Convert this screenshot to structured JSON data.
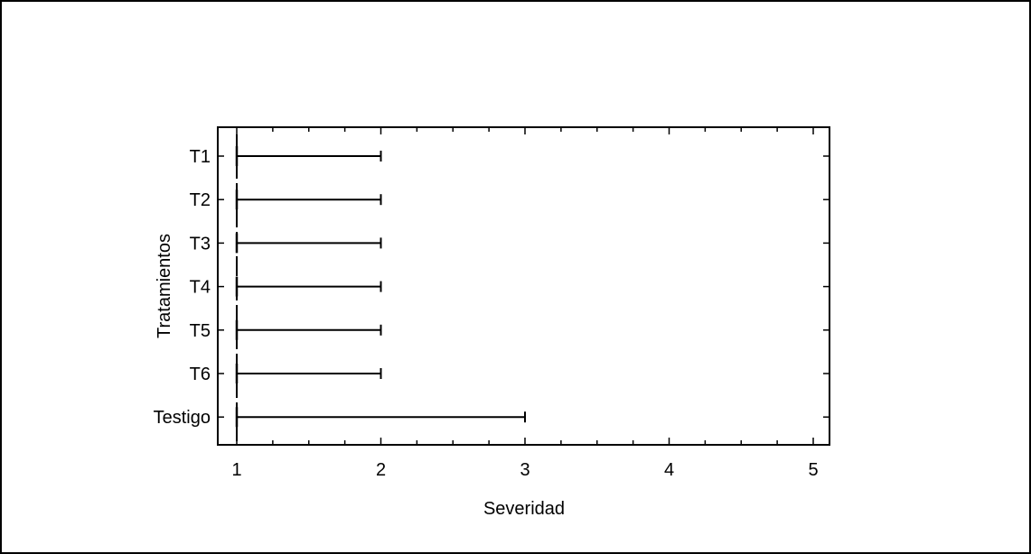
{
  "chart_data": {
    "type": "box",
    "title": "",
    "xlabel": "Severidad",
    "ylabel": "Tratamientos",
    "xlim": [
      0.9,
      5.1
    ],
    "xticks": [
      1,
      2,
      3,
      4,
      5
    ],
    "xtick_labels": [
      "1",
      "2",
      "3",
      "4",
      "5"
    ],
    "categories": [
      "T1",
      "T2",
      "T3",
      "T4",
      "T5",
      "T6",
      "Testigo"
    ],
    "series": [
      {
        "category": "T1",
        "min": 1,
        "median": 1,
        "max": 2
      },
      {
        "category": "T2",
        "min": 1,
        "median": 1,
        "max": 2
      },
      {
        "category": "T3",
        "min": 1,
        "median": 1,
        "max": 2
      },
      {
        "category": "T4",
        "min": 1,
        "median": 1,
        "max": 2
      },
      {
        "category": "T5",
        "min": 1,
        "median": 1,
        "max": 2
      },
      {
        "category": "T6",
        "min": 1,
        "median": 1,
        "max": 2
      },
      {
        "category": "Testigo",
        "min": 1,
        "median": 1,
        "max": 3
      }
    ],
    "grid": false,
    "legend": "none",
    "colors": {
      "line": "#000000",
      "background": "#ffffff"
    }
  }
}
